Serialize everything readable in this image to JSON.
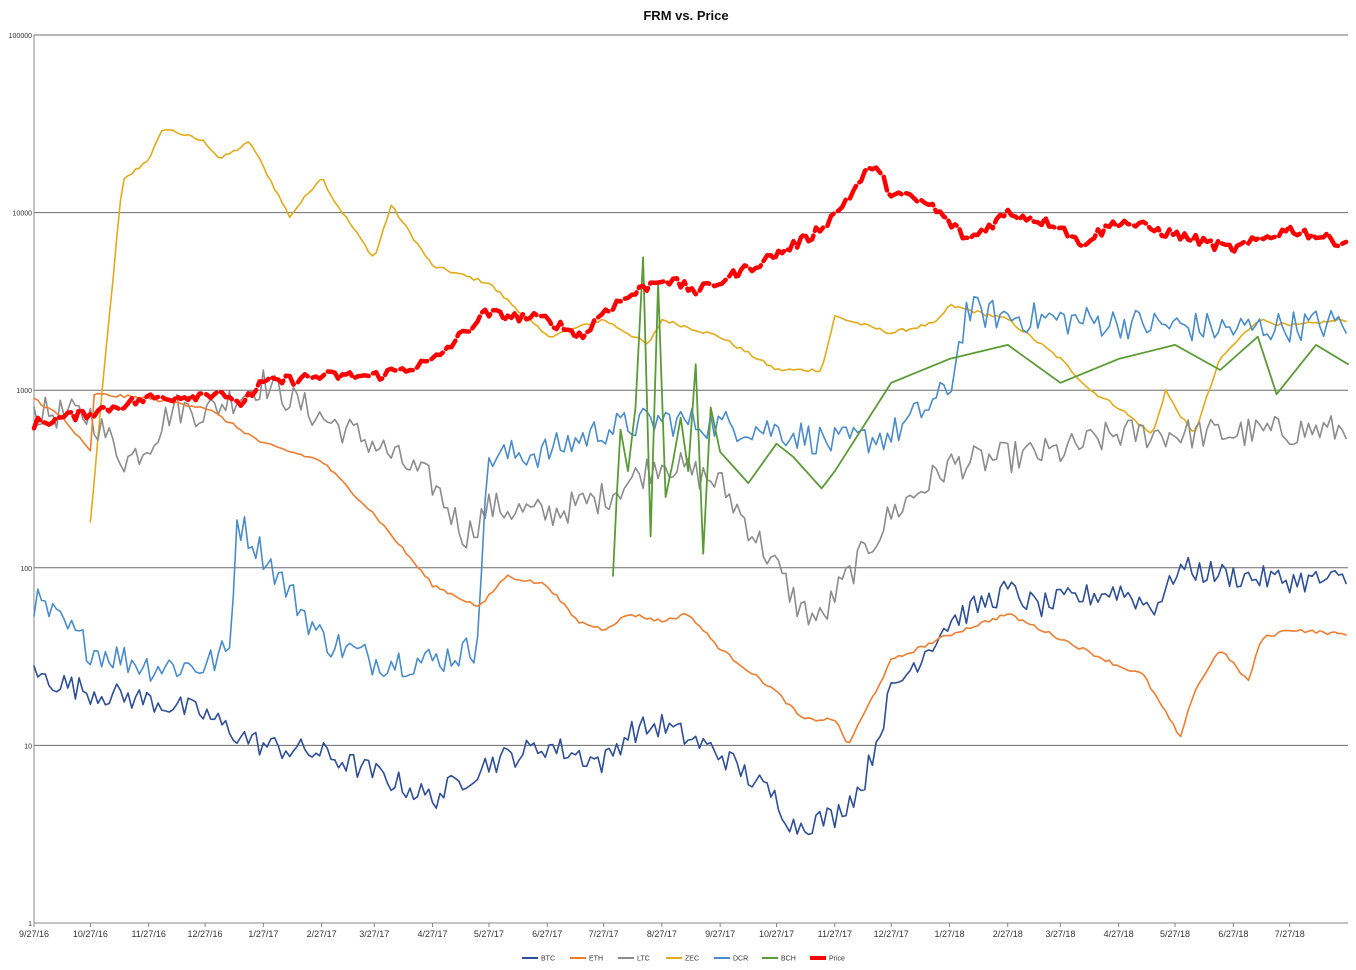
{
  "chart_data": {
    "type": "line",
    "title": "FRM vs. Price",
    "xlabel": "",
    "ylabel": "",
    "y_scale": "log",
    "ylim": [
      1,
      100000
    ],
    "y_ticks": [
      1,
      10,
      100,
      1000,
      10000,
      100000
    ],
    "y_tick_labels": [
      "1",
      "10",
      "100",
      "1000",
      "10000",
      "100000"
    ],
    "x_range": [
      "2016-09-27",
      "2018-08-27"
    ],
    "x_tick_labels": [
      "9/27/16",
      "10/27/16",
      "11/27/16",
      "12/27/16",
      "1/27/17",
      "2/27/17",
      "3/27/17",
      "4/27/17",
      "5/27/17",
      "6/27/17",
      "7/27/17",
      "8/27/17",
      "9/27/17",
      "10/27/17",
      "11/27/17",
      "12/27/17",
      "1/27/18",
      "2/27/18",
      "3/27/18",
      "4/27/18",
      "5/27/18",
      "6/27/18",
      "7/27/18"
    ],
    "x_ticks": [
      "2016-09-27",
      "2016-10-27",
      "2016-11-27",
      "2016-12-27",
      "2017-01-27",
      "2017-02-27",
      "2017-03-27",
      "2017-04-27",
      "2017-05-27",
      "2017-06-27",
      "2017-07-27",
      "2017-08-27",
      "2017-09-27",
      "2017-10-27",
      "2017-11-27",
      "2017-12-27",
      "2018-01-27",
      "2018-02-27",
      "2018-03-27",
      "2018-04-27",
      "2018-05-27",
      "2018-06-27",
      "2018-07-27"
    ],
    "grid": true,
    "legend_position": "bottom",
    "series": [
      {
        "name": "BTC",
        "color": "#2e4f96",
        "style": "noisy",
        "x": [
          "2016-09-27",
          "2016-10-27",
          "2016-11-27",
          "2016-12-27",
          "2017-01-10",
          "2017-01-27",
          "2017-02-27",
          "2017-03-27",
          "2017-04-27",
          "2017-05-27",
          "2017-06-27",
          "2017-07-27",
          "2017-08-10",
          "2017-08-27",
          "2017-09-27",
          "2017-10-27",
          "2017-11-05",
          "2017-11-27",
          "2017-12-12",
          "2017-12-27",
          "2018-01-27",
          "2018-02-27",
          "2018-03-15",
          "2018-03-27",
          "2018-04-27",
          "2018-05-15",
          "2018-05-25",
          "2018-05-27",
          "2018-06-27",
          "2018-07-27",
          "2018-08-27"
        ],
        "y": [
          25,
          20,
          18,
          15,
          12,
          10,
          9,
          7,
          5,
          8,
          10,
          8,
          12,
          13,
          9,
          5,
          3.5,
          4,
          6,
          20,
          50,
          75,
          60,
          65,
          75,
          60,
          80,
          100,
          90,
          85,
          85
        ]
      },
      {
        "name": "ETH",
        "color": "#ed7d31",
        "style": "smooth",
        "x": [
          "2016-09-27",
          "2016-10-12",
          "2016-10-27",
          "2016-10-29",
          "2016-11-27",
          "2016-12-27",
          "2017-01-27",
          "2017-02-27",
          "2017-03-27",
          "2017-04-27",
          "2017-05-22",
          "2017-06-05",
          "2017-06-27",
          "2017-07-13",
          "2017-07-27",
          "2017-08-10",
          "2017-08-27",
          "2017-09-10",
          "2017-09-27",
          "2017-10-27",
          "2017-11-10",
          "2017-11-27",
          "2017-12-04",
          "2017-12-27",
          "2018-01-27",
          "2018-02-27",
          "2018-03-27",
          "2018-04-27",
          "2018-05-10",
          "2018-05-30",
          "2018-06-06",
          "2018-06-20",
          "2018-07-05",
          "2018-07-12",
          "2018-07-27",
          "2018-08-27"
        ],
        "y": [
          900,
          700,
          450,
          950,
          900,
          800,
          500,
          400,
          200,
          80,
          60,
          90,
          80,
          50,
          45,
          55,
          50,
          55,
          35,
          20,
          14,
          14,
          10,
          30,
          42,
          55,
          40,
          28,
          25,
          11,
          20,
          35,
          23,
          40,
          45,
          42
        ]
      },
      {
        "name": "LTC",
        "color": "#8c8c8c",
        "style": "noisy",
        "x": [
          "2016-09-27",
          "2016-10-27",
          "2016-11-15",
          "2016-11-27",
          "2016-12-10",
          "2016-12-27",
          "2017-01-27",
          "2017-02-27",
          "2017-03-27",
          "2017-04-27",
          "2017-05-15",
          "2017-05-27",
          "2017-06-27",
          "2017-07-27",
          "2017-08-27",
          "2017-09-27",
          "2017-10-27",
          "2017-11-08",
          "2017-11-20",
          "2017-11-27",
          "2017-12-27",
          "2018-01-27",
          "2018-02-27",
          "2018-03-27",
          "2018-04-27",
          "2018-05-27",
          "2018-06-27",
          "2018-07-27",
          "2018-08-27"
        ],
        "y": [
          750,
          720,
          400,
          500,
          800,
          750,
          1100,
          700,
          500,
          300,
          150,
          220,
          200,
          250,
          400,
          300,
          100,
          60,
          50,
          70,
          200,
          380,
          420,
          450,
          570,
          570,
          570,
          590,
          600
        ]
      },
      {
        "name": "ZEC",
        "color": "#e2ab1a",
        "style": "smooth",
        "x": [
          "2016-10-27",
          "2016-11-03",
          "2016-11-13",
          "2016-11-27",
          "2016-12-05",
          "2016-12-27",
          "2017-01-04",
          "2017-01-20",
          "2017-02-10",
          "2017-02-27",
          "2017-03-05",
          "2017-03-27",
          "2017-04-05",
          "2017-04-27",
          "2017-05-27",
          "2017-06-27",
          "2017-07-27",
          "2017-08-20",
          "2017-08-27",
          "2017-09-27",
          "2017-10-27",
          "2017-11-10",
          "2017-11-20",
          "2017-11-27",
          "2017-12-27",
          "2018-01-20",
          "2018-01-27",
          "2018-02-27",
          "2018-03-27",
          "2018-04-12",
          "2018-04-27",
          "2018-05-15",
          "2018-05-22",
          "2018-05-27",
          "2018-06-06",
          "2018-06-20",
          "2018-07-10",
          "2018-07-27",
          "2018-08-27"
        ],
        "y": [
          180,
          1200,
          15000,
          20000,
          30000,
          25000,
          20000,
          25000,
          9500,
          16000,
          12000,
          5500,
          11000,
          5000,
          4000,
          2000,
          2500,
          1800,
          2500,
          2000,
          1300,
          1300,
          1300,
          2600,
          2100,
          2400,
          3000,
          2500,
          1500,
          1000,
          800,
          560,
          1000,
          800,
          560,
          1500,
          2500,
          2300,
          2500
        ]
      },
      {
        "name": "DCR",
        "color": "#4a8cc9",
        "style": "noisy",
        "x": [
          "2016-09-27",
          "2016-10-27",
          "2016-11-27",
          "2016-12-27",
          "2017-01-10",
          "2017-01-12",
          "2017-01-27",
          "2017-02-27",
          "2017-03-27",
          "2017-04-27",
          "2017-05-20",
          "2017-05-27",
          "2017-06-27",
          "2017-07-27",
          "2017-08-27",
          "2017-09-27",
          "2017-10-27",
          "2017-11-27",
          "2017-12-27",
          "2018-01-27",
          "2018-02-05",
          "2018-02-27",
          "2018-03-27",
          "2018-04-27",
          "2018-05-27",
          "2018-06-27",
          "2018-07-27",
          "2018-08-27"
        ],
        "y": [
          65,
          35,
          28,
          28,
          35,
          190,
          120,
          40,
          30,
          30,
          35,
          420,
          450,
          600,
          680,
          640,
          600,
          500,
          560,
          1000,
          2800,
          2600,
          2500,
          2400,
          2300,
          2200,
          2300,
          2400
        ]
      },
      {
        "name": "BCH",
        "color": "#5b9a36",
        "style": "bch",
        "x": [
          "2017-08-01",
          "2017-08-03",
          "2017-08-05",
          "2017-08-09",
          "2017-08-13",
          "2017-08-17",
          "2017-08-21",
          "2017-08-25",
          "2017-08-29",
          "2017-09-02",
          "2017-09-06",
          "2017-09-10",
          "2017-09-14",
          "2017-09-18",
          "2017-09-22",
          "2017-09-27",
          "2017-10-12",
          "2017-10-27",
          "2017-11-05",
          "2017-11-20",
          "2017-11-27",
          "2017-12-27",
          "2018-01-27",
          "2018-02-27",
          "2018-03-27",
          "2018-04-27",
          "2018-05-27",
          "2018-06-20",
          "2018-07-10",
          "2018-07-20",
          "2018-08-10",
          "2018-08-27"
        ],
        "y": [
          90,
          250,
          600,
          350,
          800,
          5600,
          150,
          4000,
          250,
          400,
          700,
          350,
          1400,
          120,
          800,
          450,
          300,
          500,
          420,
          280,
          350,
          1100,
          1500,
          1800,
          1100,
          1500,
          1800,
          1300,
          2000,
          950,
          1800,
          1400
        ]
      },
      {
        "name": "Price",
        "color": "#ff0000",
        "style": "price",
        "x": [
          "2016-09-27",
          "2016-10-27",
          "2016-11-27",
          "2016-12-27",
          "2017-01-05",
          "2017-01-12",
          "2017-01-27",
          "2017-02-27",
          "2017-03-27",
          "2017-04-27",
          "2017-05-25",
          "2017-06-27",
          "2017-07-16",
          "2017-07-27",
          "2017-08-27",
          "2017-09-15",
          "2017-09-27",
          "2017-10-27",
          "2017-11-15",
          "2017-11-28",
          "2017-12-17",
          "2017-12-27",
          "2018-01-17",
          "2018-02-06",
          "2018-02-27",
          "2018-03-27",
          "2018-04-06",
          "2018-04-27",
          "2018-05-27",
          "2018-06-27",
          "2018-07-27",
          "2018-08-27"
        ],
        "y": [
          650,
          750,
          900,
          950,
          1000,
          800,
          1100,
          1200,
          1200,
          1450,
          2700,
          2500,
          2000,
          2800,
          4300,
          3600,
          4100,
          5800,
          7500,
          10000,
          18500,
          13000,
          11000,
          7000,
          10000,
          8500,
          6600,
          9000,
          7500,
          6200,
          8100,
          6700
        ]
      }
    ]
  }
}
